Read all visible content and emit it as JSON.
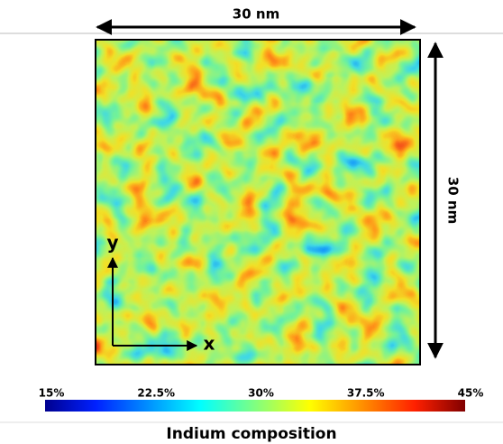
{
  "scale_top": "30 nm",
  "scale_right": "30 nm",
  "axis_y": "y",
  "axis_x": "x",
  "colorbar": {
    "ticks": [
      "15%",
      "22.5%",
      "30%",
      "37.5%",
      "45%"
    ],
    "label": "Indium composition"
  }
}
